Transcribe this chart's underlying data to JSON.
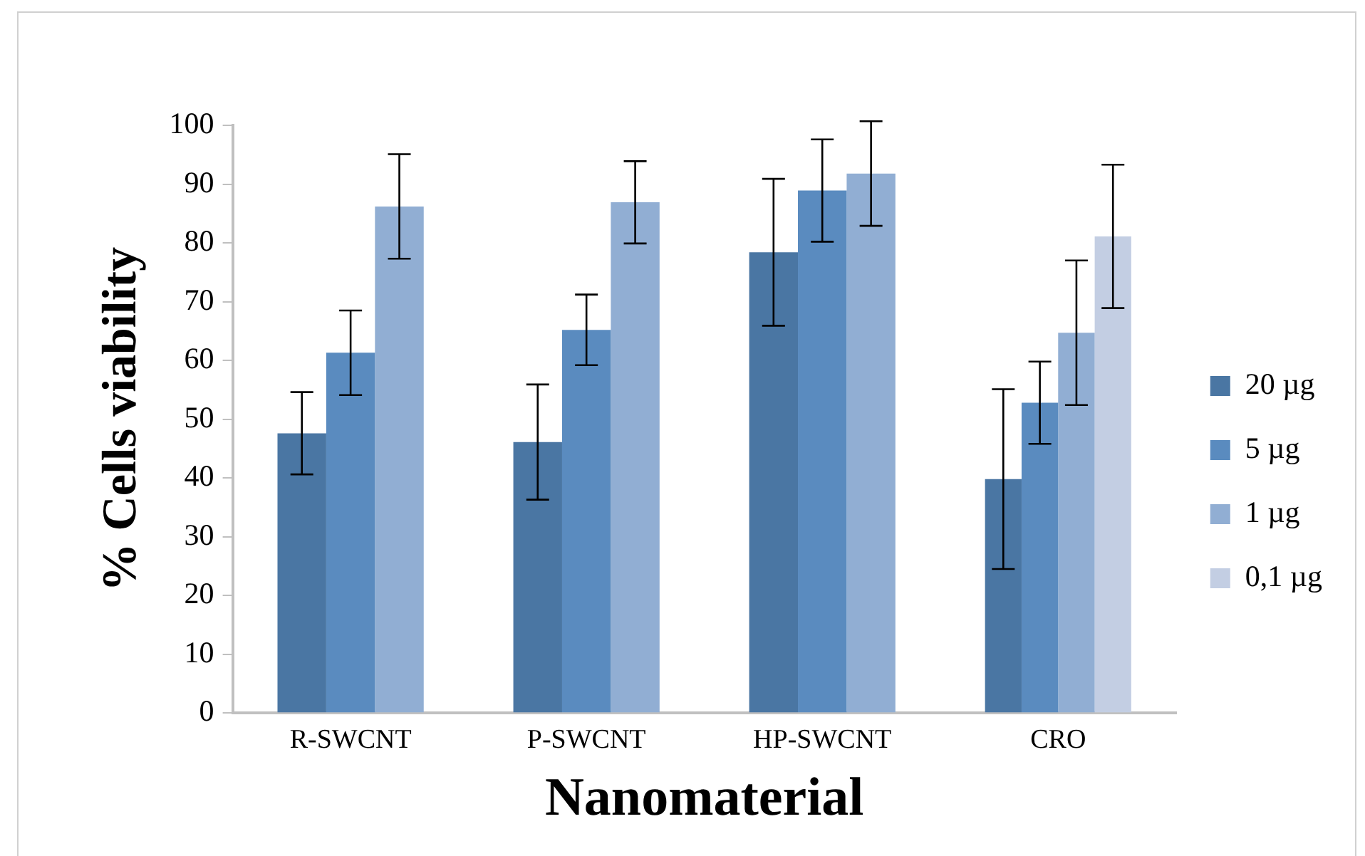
{
  "chart_data": {
    "type": "bar",
    "xlabel": "Nanomaterial",
    "ylabel": "% Cells viability",
    "categories": [
      "R-SWCNT",
      "P-SWCNT",
      "HP-SWCNT",
      "CRO"
    ],
    "series": [
      {
        "name": "20 µg",
        "color": "#4a76a3",
        "values": [
          47.6,
          46.1,
          78.4,
          39.8
        ],
        "errors": [
          7,
          9.8,
          12.5,
          15.3
        ]
      },
      {
        "name": "5 µg",
        "color": "#5a8bbf",
        "values": [
          61.3,
          65.2,
          88.9,
          52.8
        ],
        "errors": [
          7.2,
          6,
          8.7,
          7
        ]
      },
      {
        "name": "1 µg",
        "color": "#91aed3",
        "values": [
          86.2,
          86.9,
          91.8,
          64.7
        ],
        "errors": [
          8.9,
          7,
          8.9,
          12.3
        ]
      },
      {
        "name": "0,1 µg",
        "color": "#c3cee3",
        "values": [
          null,
          null,
          null,
          81.1
        ],
        "errors": [
          null,
          null,
          null,
          12.2
        ]
      }
    ],
    "ylim": [
      0,
      100
    ],
    "yticks": [
      0,
      10,
      20,
      30,
      40,
      50,
      60,
      70,
      80,
      90,
      100
    ],
    "grid": false,
    "legend": "right"
  }
}
